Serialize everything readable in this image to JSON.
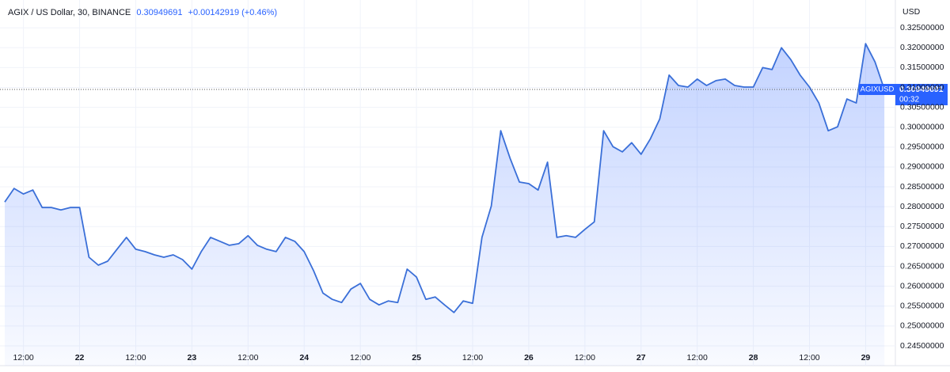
{
  "chart_data": {
    "type": "area",
    "title": "AGIX / US Dollar, 30, BINANCE",
    "change": "+0.00142919 (+0.46%)",
    "y_label": "USD",
    "countdown": "00:32",
    "categories": [
      null,
      null,
      "12:00",
      null,
      null,
      null,
      null,
      null,
      "22",
      null,
      null,
      null,
      null,
      null,
      "12:00",
      null,
      null,
      null,
      null,
      null,
      "23",
      null,
      null,
      null,
      null,
      null,
      "12:00",
      null,
      null,
      null,
      null,
      null,
      "24",
      null,
      null,
      null,
      null,
      null,
      "12:00",
      null,
      null,
      null,
      null,
      null,
      "25",
      null,
      null,
      null,
      null,
      null,
      "12:00",
      null,
      null,
      null,
      null,
      null,
      "26",
      null,
      null,
      null,
      null,
      null,
      "12:00",
      null,
      null,
      null,
      null,
      null,
      "27",
      null,
      null,
      null,
      null,
      null,
      "12:00",
      null,
      null,
      null,
      null,
      null,
      "28",
      null,
      null,
      null,
      null,
      null,
      "12:00",
      null,
      null,
      null,
      null,
      null,
      "29",
      null,
      null
    ],
    "series": [
      {
        "name": "AGIXUSD",
        "color": "#3a6fd8",
        "values": [
          0.2812,
          0.2846,
          0.2832,
          0.2842,
          0.2798,
          0.2798,
          0.2792,
          0.2798,
          0.2798,
          0.2673,
          0.2653,
          0.2663,
          0.2693,
          0.2723,
          0.2693,
          0.2687,
          0.2679,
          0.2673,
          0.2679,
          0.2667,
          0.2643,
          0.2687,
          0.2723,
          0.2713,
          0.2703,
          0.2707,
          0.2727,
          0.2703,
          0.2693,
          0.2687,
          0.2723,
          0.2713,
          0.2687,
          0.2639,
          0.2583,
          0.2567,
          0.2559,
          0.2593,
          0.2607,
          0.2567,
          0.2553,
          0.2563,
          0.2559,
          0.2643,
          0.2623,
          0.2567,
          0.2573,
          0.2553,
          0.2534,
          0.2563,
          0.2557,
          0.2723,
          0.2802,
          0.2991,
          0.2922,
          0.2862,
          0.2858,
          0.2842,
          0.2912,
          0.2723,
          0.2727,
          0.2723,
          0.2743,
          0.2762,
          0.2991,
          0.2951,
          0.2938,
          0.2961,
          0.2932,
          0.2971,
          0.3021,
          0.3131,
          0.3105,
          0.3101,
          0.3121,
          0.3105,
          0.3117,
          0.3121,
          0.3105,
          0.3101,
          0.3101,
          0.315,
          0.3145,
          0.32,
          0.317,
          0.3131,
          0.3101,
          0.3061,
          0.2991,
          0.3001,
          0.3071,
          0.3061,
          0.321,
          0.3164,
          0.30949691
        ]
      }
    ],
    "ylim": [
      0.2444,
      0.331
    ],
    "yticks": [
      {
        "value": 0.245,
        "label": "0.24500000"
      },
      {
        "value": 0.25,
        "label": "0.25000000"
      },
      {
        "value": 0.255,
        "label": "0.25500000"
      },
      {
        "value": 0.26,
        "label": "0.26000000"
      },
      {
        "value": 0.265,
        "label": "0.26500000"
      },
      {
        "value": 0.27,
        "label": "0.27000000"
      },
      {
        "value": 0.275,
        "label": "0.27500000"
      },
      {
        "value": 0.28,
        "label": "0.28000000"
      },
      {
        "value": 0.285,
        "label": "0.28500000"
      },
      {
        "value": 0.29,
        "label": "0.29000000"
      },
      {
        "value": 0.295,
        "label": "0.29500000"
      },
      {
        "value": 0.3,
        "label": "0.30000000"
      },
      {
        "value": 0.305,
        "label": "0.30500000"
      },
      {
        "value": 0.31,
        "label": "0.31000000"
      },
      {
        "value": 0.315,
        "label": "0.31500000"
      },
      {
        "value": 0.32,
        "label": "0.32000000"
      },
      {
        "value": 0.325,
        "label": "0.32500000"
      }
    ],
    "grid": true
  }
}
